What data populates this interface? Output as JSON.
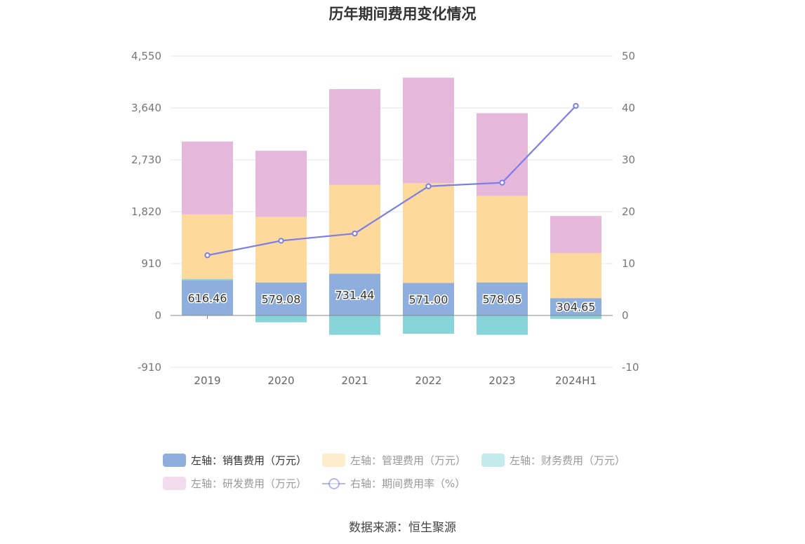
{
  "title": "历年期间费用变化情况",
  "source_text": "数据来源：恒生聚源",
  "colors": {
    "sales": "#8eaedd",
    "admin": "#fed99c",
    "finance": "#88d5d9",
    "rd": "#e6b8db",
    "rate": "#7b7ee6",
    "grid": "#e4e4ec",
    "zero_axis": "#888888"
  },
  "legend": [
    {
      "label": "左轴：销售费用（万元）",
      "series": "sales",
      "kind": "bar",
      "active": true
    },
    {
      "label": "左轴：管理费用（万元）",
      "series": "admin",
      "kind": "bar",
      "active": false
    },
    {
      "label": "左轴：财务费用（万元）",
      "series": "finance",
      "kind": "bar",
      "active": false
    },
    {
      "label": "左轴：研发费用（万元）",
      "series": "rd",
      "kind": "bar",
      "active": false
    },
    {
      "label": "右轴：期间费用率（%）",
      "series": "rate",
      "kind": "line",
      "active": false
    }
  ],
  "chart_data": {
    "type": "bar",
    "title": "历年期间费用变化情况",
    "categories": [
      "2019",
      "2020",
      "2021",
      "2022",
      "2023",
      "2024H1"
    ],
    "left_axis": {
      "min": -910,
      "max": 4550,
      "ticks": [
        "-910",
        "0",
        "910",
        "1,820",
        "2,730",
        "3,640",
        "4,550"
      ]
    },
    "right_axis": {
      "min": -10,
      "max": 50,
      "ticks": [
        "-10",
        "0",
        "10",
        "20",
        "30",
        "40",
        "50"
      ]
    },
    "series": [
      {
        "name": "左轴：销售费用（万元）",
        "key": "sales",
        "axis": "left",
        "type": "stacked-bar",
        "values": [
          616.46,
          579.08,
          731.44,
          571.0,
          578.05,
          304.65
        ],
        "labels": [
          "616.46",
          "579.08",
          "731.44",
          "571.00",
          "578.05",
          "304.65"
        ]
      },
      {
        "name": "左轴：管理费用（万元）",
        "key": "admin",
        "axis": "left",
        "type": "stacked-bar",
        "values": [
          1130,
          1150,
          1560,
          1750,
          1520,
          790
        ]
      },
      {
        "name": "左轴：财务费用（万元）",
        "key": "finance",
        "axis": "left",
        "type": "stacked-bar",
        "values": [
          25,
          -120,
          -340,
          -320,
          -340,
          -60
        ]
      },
      {
        "name": "左轴：研发费用（万元）",
        "key": "rd",
        "axis": "left",
        "type": "stacked-bar",
        "values": [
          1280,
          1160,
          1680,
          1850,
          1450,
          650
        ]
      },
      {
        "name": "右轴：期间费用率（%）",
        "key": "rate",
        "axis": "right",
        "type": "line",
        "values": [
          11.6,
          14.4,
          15.8,
          24.9,
          25.6,
          40.4
        ]
      }
    ],
    "grid": true,
    "legend_position": "bottom"
  }
}
